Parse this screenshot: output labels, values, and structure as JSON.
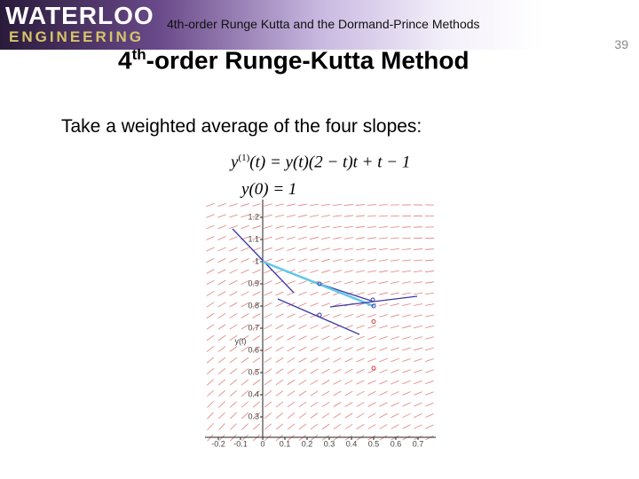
{
  "header": {
    "logo_top": "WATERLOO",
    "logo_bottom": "ENGINEERING",
    "title": "4th-order Runge Kutta and the Dormand-Prince Methods"
  },
  "page_number": "39",
  "slide_title": {
    "number": "4",
    "superscript": "th",
    "rest": "-order Runge-Kutta Method"
  },
  "body": "Take a weighted average of the four slopes:",
  "equations": [
    {
      "func": "y",
      "order": "(1)",
      "rest": "(t) = y(t)(2 − t)t + t − 1"
    },
    {
      "func": "y",
      "order": "",
      "rest": "(0) = 1"
    }
  ],
  "chart_data": {
    "type": "line",
    "ylabel": "y(t)",
    "xlim": [
      -0.26,
      0.78
    ],
    "ylim": [
      0.2,
      1.28
    ],
    "xticks": [
      -0.2,
      -0.1,
      0,
      0.1,
      0.2,
      0.3,
      0.4,
      0.5,
      0.6,
      0.7
    ],
    "yticks": [
      1.2,
      1.1,
      1,
      0.9,
      0.8,
      0.7,
      0.6,
      0.5,
      0.4,
      0.3
    ],
    "series": [
      {
        "color": "#3a3aa8",
        "x": [
          -0.136,
          0.14
        ],
        "y": [
          1.148,
          0.86
        ]
      },
      {
        "color": "#3a3aa8",
        "x": [
          0,
          0.256,
          0.5
        ],
        "y": [
          1,
          0.9,
          0.82
        ]
      },
      {
        "color": "#5fc8e8",
        "x": [
          0,
          0.5
        ],
        "y": [
          1,
          0.8
        ]
      },
      {
        "color": "#3a3aa8",
        "x": [
          0.068,
          0.436
        ],
        "y": [
          0.832,
          0.672
        ]
      },
      {
        "color": "#3a3aa8",
        "x": [
          0.304,
          0.696
        ],
        "y": [
          0.796,
          0.844
        ]
      }
    ],
    "points": {
      "color": "#3a3aa8",
      "x": [
        0.256,
        0.496,
        0.5,
        0.256
      ],
      "y": [
        0.9,
        0.828,
        0.8,
        0.76
      ]
    },
    "red_points": {
      "color": "#d04040",
      "x": [
        0.5,
        0.5
      ],
      "y": [
        0.73,
        0.52
      ]
    }
  }
}
